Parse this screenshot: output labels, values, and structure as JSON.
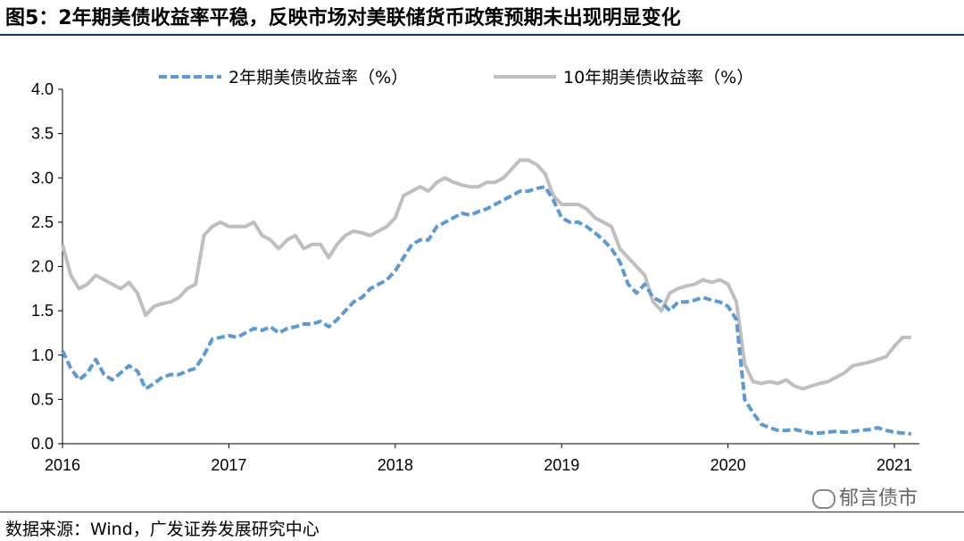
{
  "title": "图5：2年期美债收益率平稳，反映市场对美联储货币政策预期未出现明显变化",
  "source": "数据来源：Wind，广发证券发展研究中心",
  "watermark": "郁言债市",
  "colors": {
    "series_2y": "#5b9bd5",
    "series_10y": "#bfbfbf",
    "rule": "#0b3a6e"
  },
  "chart_data": {
    "type": "line",
    "title": "",
    "xlabel": "",
    "ylabel": "",
    "xlim": [
      2016.0,
      2021.15
    ],
    "ylim": [
      0.0,
      4.0
    ],
    "yticks": [
      "0.0",
      "0.5",
      "1.0",
      "1.5",
      "2.0",
      "2.5",
      "3.0",
      "3.5",
      "4.0"
    ],
    "xticks": [
      "2016",
      "2017",
      "2018",
      "2019",
      "2020",
      "2021"
    ],
    "grid": false,
    "legend_position": "top-center",
    "series": [
      {
        "name": "2年期美债收益率（%）",
        "style": "dashed",
        "color": "#5b9bd5",
        "x": [
          2016.0,
          2016.05,
          2016.1,
          2016.15,
          2016.2,
          2016.25,
          2016.3,
          2016.35,
          2016.4,
          2016.45,
          2016.5,
          2016.55,
          2016.6,
          2016.65,
          2016.7,
          2016.75,
          2016.8,
          2016.85,
          2016.9,
          2016.95,
          2017.0,
          2017.05,
          2017.1,
          2017.15,
          2017.2,
          2017.25,
          2017.3,
          2017.35,
          2017.4,
          2017.45,
          2017.5,
          2017.55,
          2017.6,
          2017.65,
          2017.7,
          2017.75,
          2017.8,
          2017.85,
          2017.9,
          2017.95,
          2018.0,
          2018.05,
          2018.1,
          2018.15,
          2018.2,
          2018.25,
          2018.3,
          2018.35,
          2018.4,
          2018.45,
          2018.5,
          2018.55,
          2018.6,
          2018.65,
          2018.7,
          2018.75,
          2018.8,
          2018.85,
          2018.9,
          2018.95,
          2019.0,
          2019.05,
          2019.1,
          2019.15,
          2019.2,
          2019.25,
          2019.3,
          2019.35,
          2019.4,
          2019.45,
          2019.5,
          2019.55,
          2019.6,
          2019.65,
          2019.7,
          2019.75,
          2019.8,
          2019.85,
          2019.9,
          2019.95,
          2020.0,
          2020.05,
          2020.1,
          2020.15,
          2020.2,
          2020.25,
          2020.3,
          2020.35,
          2020.4,
          2020.45,
          2020.5,
          2020.55,
          2020.6,
          2020.65,
          2020.7,
          2020.75,
          2020.8,
          2020.85,
          2020.9,
          2020.95,
          2021.0,
          2021.05,
          2021.1
        ],
        "values": [
          1.05,
          0.85,
          0.72,
          0.8,
          0.95,
          0.78,
          0.72,
          0.8,
          0.88,
          0.82,
          0.62,
          0.68,
          0.75,
          0.78,
          0.78,
          0.82,
          0.85,
          1.0,
          1.18,
          1.2,
          1.22,
          1.2,
          1.25,
          1.3,
          1.28,
          1.32,
          1.25,
          1.3,
          1.32,
          1.35,
          1.35,
          1.38,
          1.32,
          1.4,
          1.5,
          1.6,
          1.65,
          1.75,
          1.8,
          1.85,
          1.95,
          2.1,
          2.25,
          2.3,
          2.3,
          2.45,
          2.5,
          2.55,
          2.6,
          2.58,
          2.62,
          2.65,
          2.7,
          2.75,
          2.8,
          2.85,
          2.85,
          2.88,
          2.9,
          2.75,
          2.55,
          2.5,
          2.5,
          2.45,
          2.38,
          2.3,
          2.2,
          2.05,
          1.8,
          1.7,
          1.8,
          1.65,
          1.6,
          1.5,
          1.6,
          1.6,
          1.62,
          1.65,
          1.62,
          1.6,
          1.55,
          1.4,
          0.5,
          0.35,
          0.22,
          0.18,
          0.15,
          0.15,
          0.16,
          0.14,
          0.12,
          0.12,
          0.13,
          0.14,
          0.13,
          0.14,
          0.15,
          0.16,
          0.18,
          0.15,
          0.13,
          0.12,
          0.11
        ]
      },
      {
        "name": "10年期美债收益率（%）",
        "style": "solid",
        "color": "#bfbfbf",
        "x": [
          2016.0,
          2016.05,
          2016.1,
          2016.15,
          2016.2,
          2016.25,
          2016.3,
          2016.35,
          2016.4,
          2016.45,
          2016.5,
          2016.55,
          2016.6,
          2016.65,
          2016.7,
          2016.75,
          2016.8,
          2016.85,
          2016.9,
          2016.95,
          2017.0,
          2017.05,
          2017.1,
          2017.15,
          2017.2,
          2017.25,
          2017.3,
          2017.35,
          2017.4,
          2017.45,
          2017.5,
          2017.55,
          2017.6,
          2017.65,
          2017.7,
          2017.75,
          2017.8,
          2017.85,
          2017.9,
          2017.95,
          2018.0,
          2018.05,
          2018.1,
          2018.15,
          2018.2,
          2018.25,
          2018.3,
          2018.35,
          2018.4,
          2018.45,
          2018.5,
          2018.55,
          2018.6,
          2018.65,
          2018.7,
          2018.75,
          2018.8,
          2018.85,
          2018.9,
          2018.95,
          2019.0,
          2019.05,
          2019.1,
          2019.15,
          2019.2,
          2019.25,
          2019.3,
          2019.35,
          2019.4,
          2019.45,
          2019.5,
          2019.55,
          2019.6,
          2019.65,
          2019.7,
          2019.75,
          2019.8,
          2019.85,
          2019.9,
          2019.95,
          2020.0,
          2020.05,
          2020.1,
          2020.15,
          2020.2,
          2020.25,
          2020.3,
          2020.35,
          2020.4,
          2020.45,
          2020.5,
          2020.55,
          2020.6,
          2020.65,
          2020.7,
          2020.75,
          2020.8,
          2020.85,
          2020.9,
          2020.95,
          2021.0,
          2021.05,
          2021.1
        ],
        "values": [
          2.25,
          1.9,
          1.75,
          1.8,
          1.9,
          1.85,
          1.8,
          1.75,
          1.82,
          1.7,
          1.45,
          1.55,
          1.58,
          1.6,
          1.65,
          1.75,
          1.8,
          2.35,
          2.45,
          2.5,
          2.45,
          2.45,
          2.45,
          2.5,
          2.35,
          2.3,
          2.2,
          2.3,
          2.35,
          2.2,
          2.25,
          2.25,
          2.1,
          2.25,
          2.35,
          2.4,
          2.38,
          2.35,
          2.4,
          2.45,
          2.55,
          2.8,
          2.85,
          2.9,
          2.85,
          2.95,
          3.0,
          2.95,
          2.92,
          2.9,
          2.9,
          2.95,
          2.95,
          3.0,
          3.1,
          3.2,
          3.2,
          3.15,
          3.05,
          2.8,
          2.7,
          2.7,
          2.7,
          2.65,
          2.55,
          2.5,
          2.45,
          2.2,
          2.1,
          2.0,
          1.9,
          1.6,
          1.5,
          1.7,
          1.75,
          1.78,
          1.8,
          1.85,
          1.82,
          1.85,
          1.8,
          1.6,
          0.9,
          0.7,
          0.68,
          0.7,
          0.68,
          0.72,
          0.65,
          0.62,
          0.65,
          0.68,
          0.7,
          0.75,
          0.8,
          0.88,
          0.9,
          0.92,
          0.95,
          0.98,
          1.1,
          1.2,
          1.2
        ]
      }
    ]
  }
}
